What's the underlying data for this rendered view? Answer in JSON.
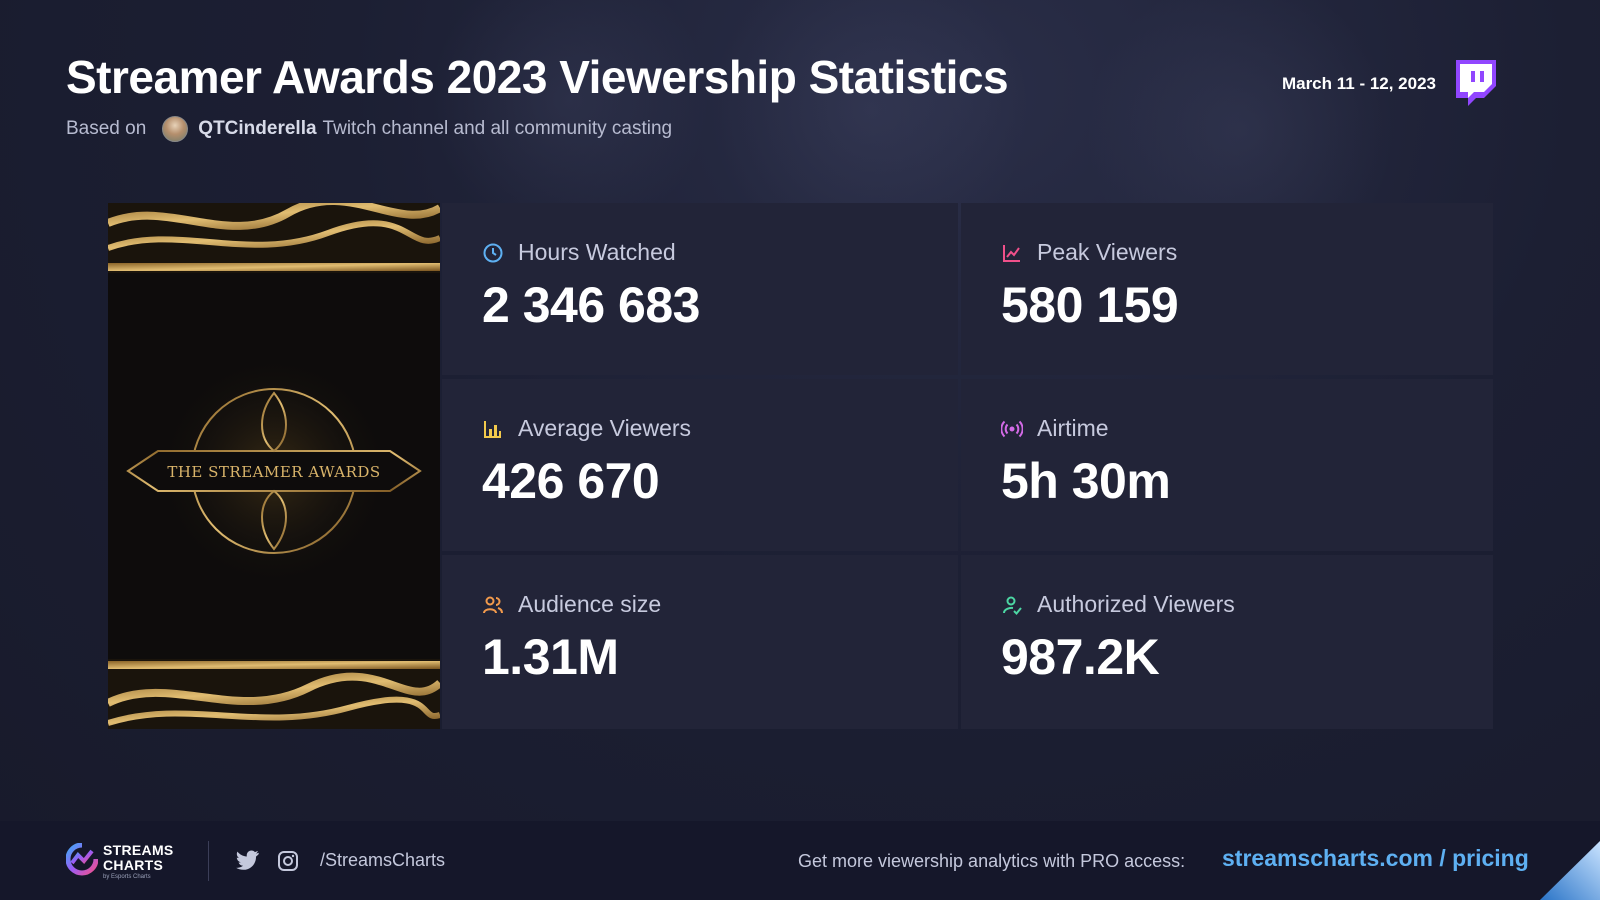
{
  "header": {
    "title": "Streamer Awards 2023 Viewership Statistics",
    "subtitle_prefix": "Based on",
    "channel": "QTCinderella",
    "subtitle_suffix": "Twitch channel and all community casting",
    "date": "March 11 - 12, 2023",
    "platform_icon": "twitch-icon"
  },
  "poster": {
    "text": "THE STREAMER AWARDS"
  },
  "stats": [
    {
      "label": "Hours Watched",
      "value": "2 346 683",
      "icon": "clock-icon",
      "color": "#5eb0f2"
    },
    {
      "label": "Peak Viewers",
      "value": "580 159",
      "icon": "chart-line-icon",
      "color": "#f0508a"
    },
    {
      "label": "Average Viewers",
      "value": "426 670",
      "icon": "chart-bar-icon",
      "color": "#f2c94c"
    },
    {
      "label": "Airtime",
      "value": "5h 30m",
      "icon": "broadcast-icon",
      "color": "#d36ae6"
    },
    {
      "label": "Audience size",
      "value": "1.31M",
      "icon": "users-icon",
      "color": "#f29a4c"
    },
    {
      "label": "Authorized Viewers",
      "value": "987.2K",
      "icon": "user-check-icon",
      "color": "#4cd6a3"
    }
  ],
  "footer": {
    "logo_line1": "STREAMS",
    "logo_line2": "CHARTS",
    "logo_sub": "by Esports Charts",
    "handle": "/StreamsCharts",
    "promo": "Get more viewership analytics with PRO access:",
    "site": "streamscharts.com / pricing"
  },
  "colors": {
    "background": "#1c1f33",
    "card": "#222438",
    "accent_link": "#5eb0f2",
    "twitch": "#9146ff",
    "gold": "#c9a05a"
  }
}
